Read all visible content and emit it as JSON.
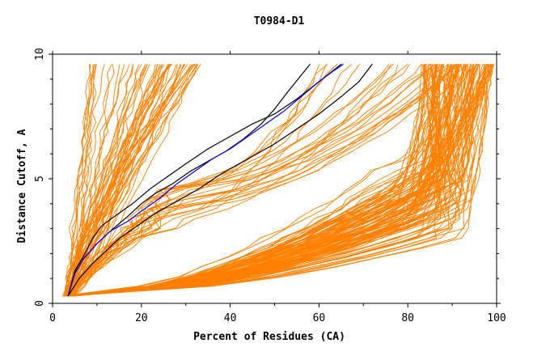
{
  "chart_data": {
    "type": "line",
    "title": "T0984-D1",
    "xlabel": "Percent of Residues (CA)",
    "ylabel": "Distance Cutoff, A",
    "xlim": [
      0,
      100
    ],
    "ylim": [
      0,
      10
    ],
    "xticks": [
      0,
      20,
      40,
      60,
      80,
      100
    ],
    "yticks": [
      0,
      5,
      10
    ],
    "grid": false,
    "colors": {
      "orange": "#ff8000",
      "black": "#000000",
      "blue": "#0000ff"
    },
    "highlighted_series": [
      {
        "name": "black-1",
        "color": "#000000",
        "x": [
          3.5,
          5,
          7,
          10,
          13,
          17,
          20,
          23,
          27,
          31,
          35,
          39,
          43,
          47,
          50,
          53,
          58
        ],
        "y": [
          0.3,
          1.2,
          1.8,
          2.4,
          2.9,
          3.5,
          4.0,
          4.4,
          4.8,
          5.3,
          5.7,
          6.1,
          6.6,
          7.2,
          7.8,
          8.5,
          9.6
        ]
      },
      {
        "name": "black-2",
        "color": "#000000",
        "x": [
          3.5,
          5,
          7,
          9,
          11,
          14,
          18,
          22,
          26,
          30,
          35,
          40,
          45,
          50,
          55,
          60,
          65
        ],
        "y": [
          0.3,
          1.3,
          1.9,
          2.6,
          3.1,
          3.5,
          4.0,
          4.6,
          5.1,
          5.6,
          6.2,
          6.7,
          7.2,
          7.6,
          8.2,
          8.9,
          9.6
        ]
      },
      {
        "name": "black-3",
        "color": "#000000",
        "x": [
          3.5,
          6,
          9,
          12,
          15,
          19,
          23,
          28,
          33,
          38,
          44,
          50,
          55,
          60,
          65,
          69,
          72
        ],
        "y": [
          0.3,
          1.0,
          1.6,
          2.1,
          2.6,
          3.1,
          3.6,
          4.1,
          4.6,
          5.2,
          5.8,
          6.4,
          7.0,
          7.6,
          8.3,
          8.9,
          9.6
        ]
      },
      {
        "name": "blue",
        "color": "#0000ff",
        "x": [
          3.5,
          5,
          7,
          10,
          13,
          17,
          20,
          24,
          28,
          32,
          36,
          40,
          44,
          48,
          52,
          56,
          60,
          63,
          65.5
        ],
        "y": [
          0.3,
          1.2,
          1.8,
          2.4,
          2.9,
          3.3,
          3.7,
          4.2,
          4.8,
          5.3,
          5.8,
          6.2,
          6.7,
          7.2,
          7.7,
          8.3,
          8.9,
          9.3,
          9.6
        ]
      }
    ],
    "background_series_description_count": 0
  }
}
